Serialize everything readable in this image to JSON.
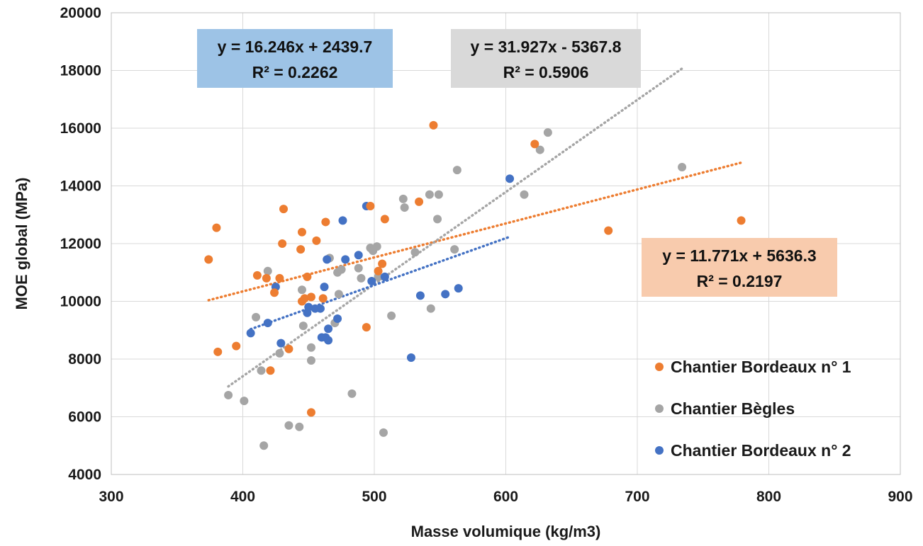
{
  "chart_data": {
    "type": "scatter",
    "title": "",
    "xlabel": "Masse volumique (kg/m3)",
    "ylabel": "MOE global (MPa)",
    "xlim": [
      300,
      900
    ],
    "ylim": [
      4000,
      20000
    ],
    "xticks": [
      300,
      400,
      500,
      600,
      700,
      800,
      900
    ],
    "yticks": [
      4000,
      6000,
      8000,
      10000,
      12000,
      14000,
      16000,
      18000,
      20000
    ],
    "grid": true,
    "legend_position": "right",
    "series": [
      {
        "name": "Chantier Bordeaux n° 1",
        "color": "#ED7D31",
        "points": [
          [
            374,
            11450
          ],
          [
            380,
            12550
          ],
          [
            381,
            8250
          ],
          [
            395,
            8450
          ],
          [
            411,
            10900
          ],
          [
            418,
            10800
          ],
          [
            421,
            7600
          ],
          [
            424,
            10300
          ],
          [
            428,
            10800
          ],
          [
            430,
            12000
          ],
          [
            431,
            13200
          ],
          [
            435,
            8350
          ],
          [
            444,
            11800
          ],
          [
            445,
            12400
          ],
          [
            445,
            10000
          ],
          [
            447,
            10100
          ],
          [
            449,
            10850
          ],
          [
            452,
            10150
          ],
          [
            452,
            6150
          ],
          [
            456,
            12100
          ],
          [
            461,
            10100
          ],
          [
            463,
            12750
          ],
          [
            497,
            13300
          ],
          [
            494,
            9100
          ],
          [
            503,
            11050
          ],
          [
            506,
            11300
          ],
          [
            508,
            12850
          ],
          [
            534,
            13450
          ],
          [
            545,
            16100
          ],
          [
            622,
            15450
          ],
          [
            678,
            12450
          ],
          [
            779,
            12800
          ]
        ],
        "trendline": {
          "equation": "y = 11.771x + 5636.3",
          "r2": "R² = 0.2197",
          "slope": 11.771,
          "intercept": 5636.3,
          "x_range": [
            374,
            779
          ]
        }
      },
      {
        "name": "Chantier Bègles",
        "color": "#A5A5A5",
        "points": [
          [
            389,
            6750
          ],
          [
            401,
            6550
          ],
          [
            410,
            9450
          ],
          [
            414,
            7600
          ],
          [
            416,
            5000
          ],
          [
            419,
            11050
          ],
          [
            428,
            8200
          ],
          [
            435,
            5700
          ],
          [
            443,
            5650
          ],
          [
            445,
            10400
          ],
          [
            446,
            9150
          ],
          [
            452,
            7950
          ],
          [
            452,
            8400
          ],
          [
            466,
            11500
          ],
          [
            470,
            9250
          ],
          [
            472,
            11000
          ],
          [
            473,
            10250
          ],
          [
            475,
            11100
          ],
          [
            483,
            6800
          ],
          [
            488,
            11150
          ],
          [
            490,
            10800
          ],
          [
            497,
            11850
          ],
          [
            499,
            11750
          ],
          [
            502,
            11900
          ],
          [
            503,
            10850
          ],
          [
            507,
            5450
          ],
          [
            513,
            9500
          ],
          [
            522,
            13550
          ],
          [
            523,
            13250
          ],
          [
            531,
            11700
          ],
          [
            542,
            13700
          ],
          [
            543,
            9750
          ],
          [
            548,
            12850
          ],
          [
            549,
            13700
          ],
          [
            561,
            11800
          ],
          [
            563,
            14550
          ],
          [
            614,
            13700
          ],
          [
            626,
            15250
          ],
          [
            632,
            15850
          ],
          [
            734,
            14650
          ]
        ],
        "trendline": {
          "equation": "y = 31.927x - 5367.8",
          "r2": "R² = 0.5906",
          "slope": 31.927,
          "intercept": -5367.8,
          "x_range": [
            389,
            734
          ]
        }
      },
      {
        "name": "Chantier Bordeaux n° 2",
        "color": "#4472C4",
        "points": [
          [
            406,
            8900
          ],
          [
            419,
            9250
          ],
          [
            425,
            10500
          ],
          [
            429,
            8550
          ],
          [
            449,
            9600
          ],
          [
            450,
            9800
          ],
          [
            455,
            9750
          ],
          [
            459,
            9750
          ],
          [
            460,
            8750
          ],
          [
            462,
            10500
          ],
          [
            463,
            8750
          ],
          [
            464,
            11450
          ],
          [
            465,
            9050
          ],
          [
            465,
            8650
          ],
          [
            472,
            9400
          ],
          [
            476,
            12800
          ],
          [
            478,
            11450
          ],
          [
            488,
            11600
          ],
          [
            494,
            13300
          ],
          [
            498,
            10700
          ],
          [
            508,
            10850
          ],
          [
            528,
            8050
          ],
          [
            535,
            10200
          ],
          [
            554,
            10250
          ],
          [
            564,
            10450
          ],
          [
            603,
            14250
          ]
        ],
        "trendline": {
          "equation": "y = 16.246x + 2439.7",
          "r2": "R² = 0.2262",
          "slope": 16.246,
          "intercept": 2439.7,
          "x_range": [
            406,
            603
          ]
        }
      }
    ],
    "annotations": [
      {
        "series": 2,
        "fill": "#9DC3E6",
        "text1": "y = 16.246x + 2439.7",
        "text2": "R² = 0.2262"
      },
      {
        "series": 1,
        "fill": "#D9D9D9",
        "text1": "y = 31.927x - 5367.8",
        "text2": "R² = 0.5906"
      },
      {
        "series": 0,
        "fill": "#F8CBAD",
        "text1": "y = 11.771x + 5636.3",
        "text2": "R² = 0.2197"
      }
    ]
  }
}
